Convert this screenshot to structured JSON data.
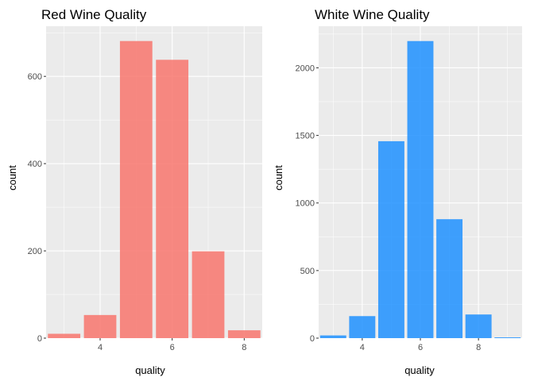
{
  "chart_data": [
    {
      "type": "bar",
      "title": "Red Wine Quality",
      "xlabel": "quality",
      "ylabel": "count",
      "x": [
        3,
        4,
        5,
        6,
        7,
        8
      ],
      "values": [
        10,
        53,
        681,
        638,
        199,
        18
      ],
      "xlim": [
        2.5,
        8.5
      ],
      "ylim": [
        0,
        715
      ],
      "xticks": [
        4,
        6,
        8
      ],
      "yticks": [
        0,
        200,
        400,
        600
      ],
      "fill": "#F8766D",
      "panel_bg": "#EBEBEB",
      "grid": true,
      "legend": "none"
    },
    {
      "type": "bar",
      "title": "White Wine Quality",
      "xlabel": "quality",
      "ylabel": "count",
      "x": [
        3,
        4,
        5,
        6,
        7,
        8,
        9
      ],
      "values": [
        20,
        163,
        1457,
        2198,
        880,
        175,
        5
      ],
      "xlim": [
        2.5,
        9.5
      ],
      "ylim": [
        0,
        2308
      ],
      "xticks": [
        4,
        6,
        8
      ],
      "yticks": [
        0,
        500,
        1000,
        1500,
        2000
      ],
      "fill": "#1E90FF",
      "panel_bg": "#EBEBEB",
      "grid": true,
      "legend": "none"
    }
  ]
}
